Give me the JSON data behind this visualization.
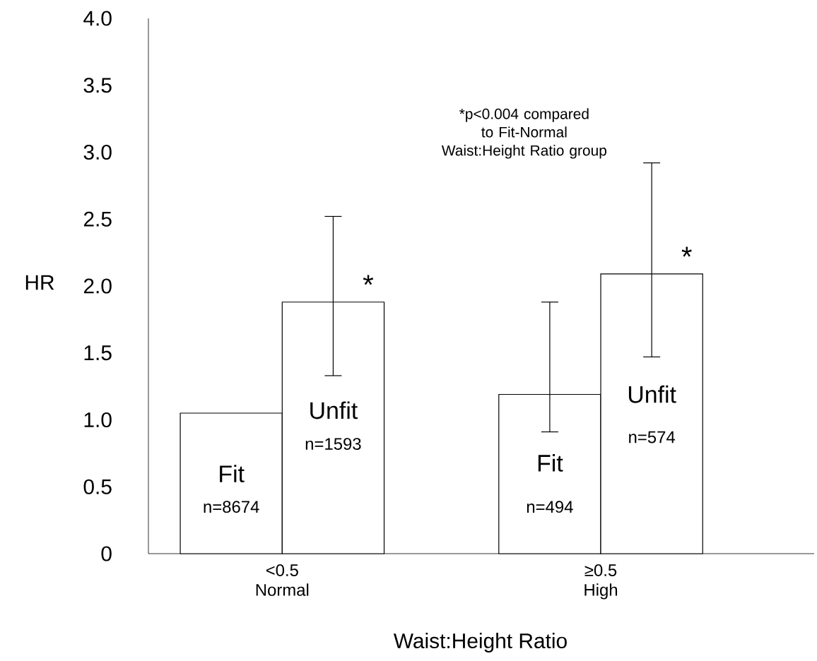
{
  "chart_data": {
    "type": "bar",
    "xlabel": "Waist:Height Ratio",
    "ylabel": "HR",
    "categories": [
      "<0.5 Normal",
      "≥0.5 High"
    ],
    "series": [
      {
        "name": "Fit",
        "color": "#ffffff",
        "values": [
          1.05,
          1.19
        ],
        "errors": [
          null,
          [
            0.91,
            1.88
          ]
        ]
      },
      {
        "name": "Unfit",
        "color": "#ffffff",
        "values": [
          1.88,
          2.09
        ],
        "errors": [
          [
            1.33,
            2.52
          ],
          [
            1.47,
            2.92
          ]
        ]
      }
    ],
    "ylim": [
      0,
      4.0
    ],
    "yticks": [
      {
        "value": 0,
        "label": "0"
      },
      {
        "value": 0.5,
        "label": "0.5"
      },
      {
        "value": 1.0,
        "label": "1.0"
      },
      {
        "value": 1.5,
        "label": "1.5"
      },
      {
        "value": 2.0,
        "label": "2.0"
      },
      {
        "value": 2.5,
        "label": "2.5"
      },
      {
        "value": 3.0,
        "label": "3.0"
      },
      {
        "value": 3.5,
        "label": "3.5"
      },
      {
        "value": 4.0,
        "label": "4.0"
      }
    ],
    "grid": false,
    "legend": false,
    "annotations": [
      "*p<0.004 compared to Fit-Normal Waist:Height Ratio group",
      {
        "text": "n=8674",
        "x": "<0.5 Normal",
        "y": 0.35
      },
      {
        "text": "n=1593",
        "x": "<0.5 Normal",
        "y": 0.82
      },
      "*",
      {
        "text": "n=494",
        "x": "≥0.5 High",
        "y": 0.35
      },
      {
        "text": "n=574",
        "x": "≥0.5 High",
        "y": 0.87
      },
      "*"
    ]
  }
}
